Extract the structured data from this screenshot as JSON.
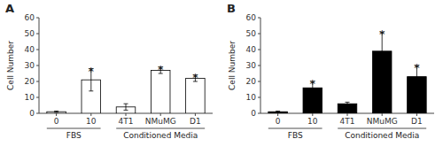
{
  "chart_data": [
    {
      "type": "bar",
      "title": "A",
      "ylabel": "Cell Number",
      "categories": [
        "0",
        "10",
        "4T1",
        "NMuMG",
        "D1"
      ],
      "values": [
        1,
        21,
        4,
        27,
        22
      ],
      "errors": [
        0.4,
        7,
        2,
        2,
        2
      ],
      "annotations": [
        null,
        "*",
        null,
        "*",
        "*"
      ],
      "groups": [
        {
          "label": "FBS",
          "first": "0",
          "last": "10"
        },
        {
          "label": "Conditioned Media",
          "first": "4T1",
          "last": "D1"
        }
      ],
      "color": "white",
      "ylim": [
        0,
        60
      ],
      "yticks": [
        0,
        10,
        20,
        30,
        40,
        50,
        60
      ],
      "grid": false
    },
    {
      "type": "bar",
      "title": "B",
      "ylabel": "Cell Number",
      "categories": [
        "0",
        "10",
        "4T1",
        "NMuMG",
        "D1"
      ],
      "values": [
        1,
        16,
        6,
        39,
        23
      ],
      "errors": [
        0.4,
        4,
        1,
        12,
        7
      ],
      "annotations": [
        null,
        "*",
        null,
        "*",
        "*"
      ],
      "groups": [
        {
          "label": "FBS",
          "first": "0",
          "last": "10"
        },
        {
          "label": "Conditioned Media",
          "first": "4T1",
          "last": "D1"
        }
      ],
      "color": "black",
      "ylim": [
        0,
        60
      ],
      "yticks": [
        0,
        10,
        20,
        30,
        40,
        50,
        60
      ],
      "grid": false
    }
  ]
}
